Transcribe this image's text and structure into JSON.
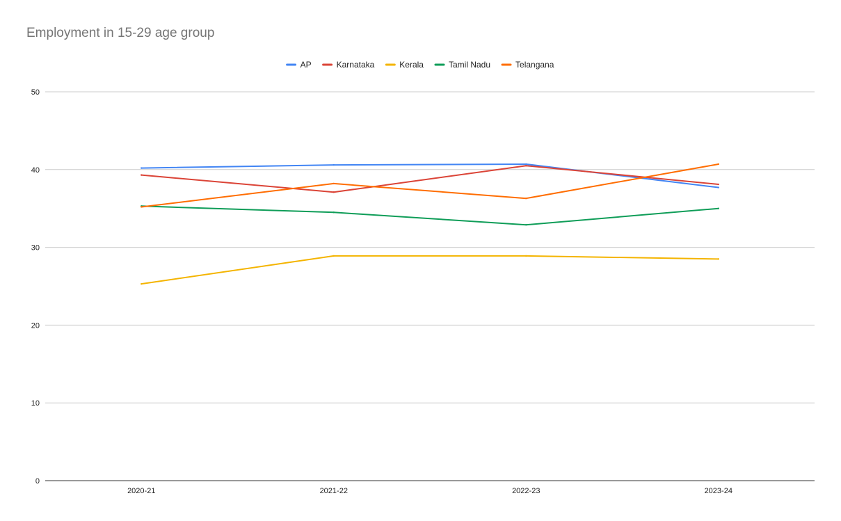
{
  "chart_data": {
    "type": "line",
    "title": "Employment in 15-29 age group",
    "xlabel": "",
    "ylabel": "",
    "categories": [
      "2020-21",
      "2021-22",
      "2022-23",
      "2023-24"
    ],
    "ylim": [
      0,
      50
    ],
    "yticks": [
      0,
      10,
      20,
      30,
      40,
      50
    ],
    "grid": true,
    "legend_position": "top",
    "series": [
      {
        "name": "AP",
        "color": "#4285f4",
        "values": [
          40.2,
          40.6,
          40.7,
          37.7
        ]
      },
      {
        "name": "Karnataka",
        "color": "#db4437",
        "values": [
          39.3,
          37.1,
          40.5,
          38.1
        ]
      },
      {
        "name": "Kerala",
        "color": "#f4b400",
        "values": [
          25.3,
          28.9,
          28.9,
          28.5
        ]
      },
      {
        "name": "Tamil Nadu",
        "color": "#0f9d58",
        "values": [
          35.3,
          34.5,
          32.9,
          35.0
        ]
      },
      {
        "name": "Telangana",
        "color": "#ff6d01",
        "values": [
          35.2,
          38.2,
          36.3,
          40.7
        ]
      }
    ]
  }
}
